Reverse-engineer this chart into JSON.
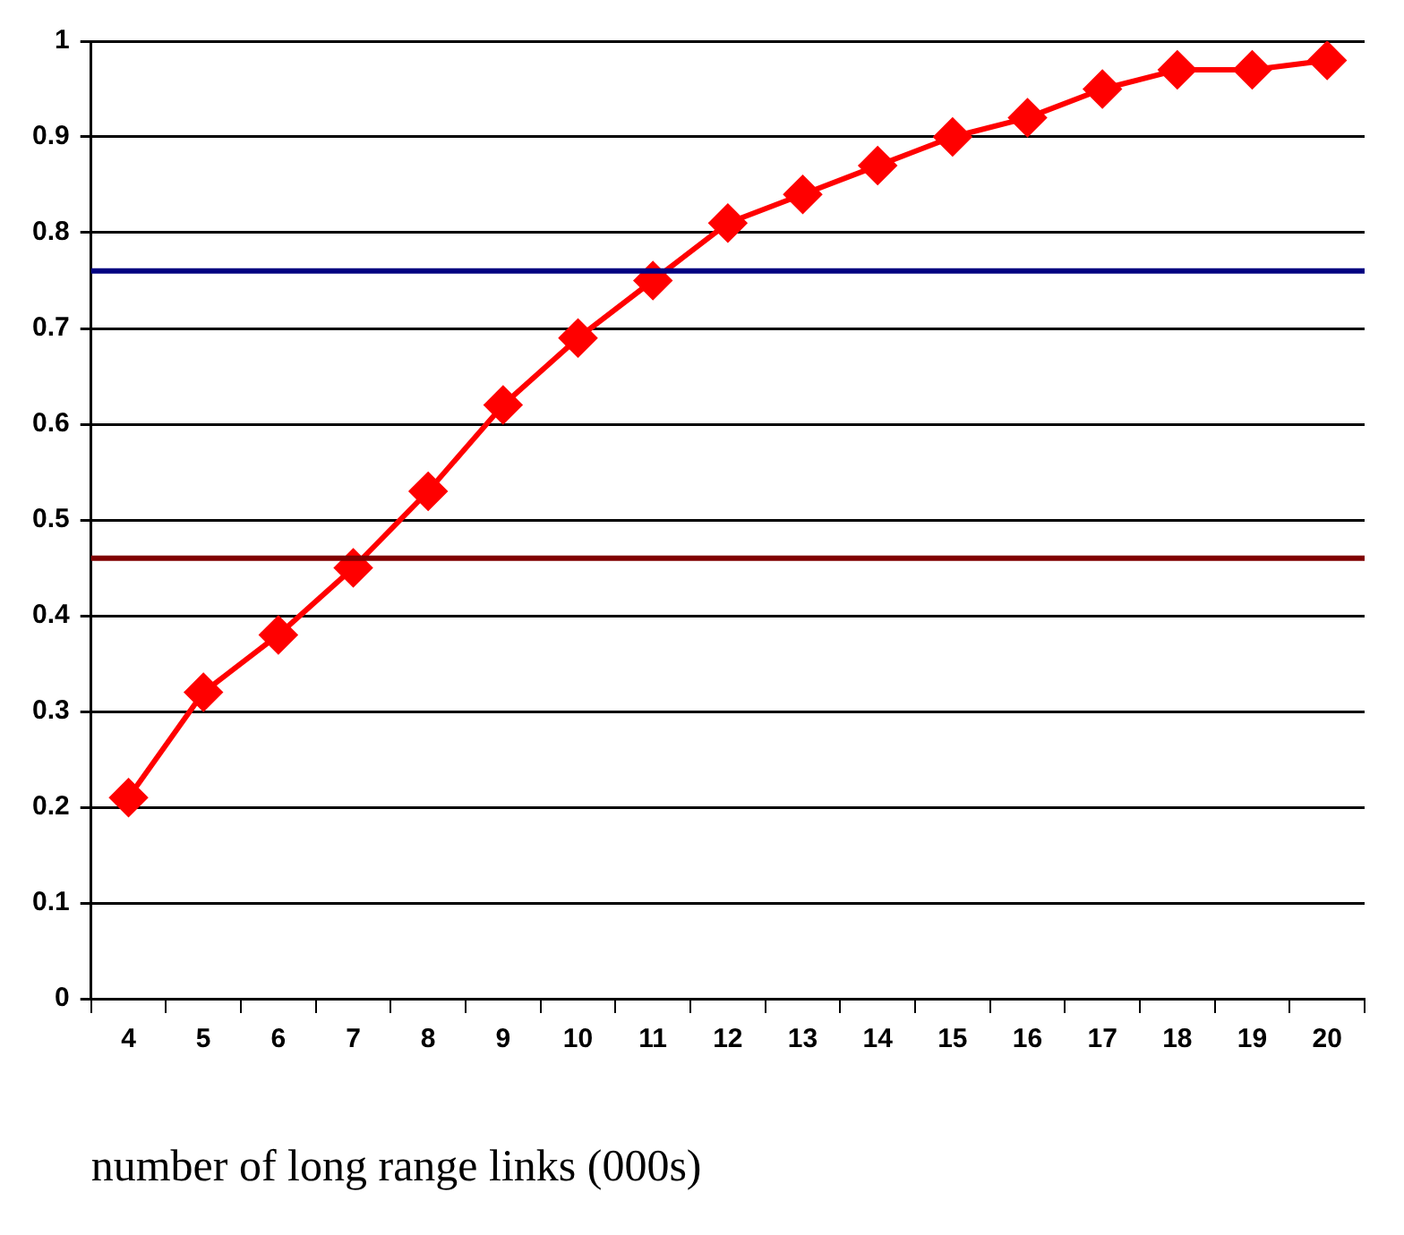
{
  "chart_data": {
    "type": "line",
    "xlabel": "number of long range links (000s)",
    "categories": [
      "4",
      "5",
      "6",
      "7",
      "8",
      "9",
      "10",
      "11",
      "12",
      "13",
      "14",
      "15",
      "16",
      "17",
      "18",
      "19",
      "20"
    ],
    "series": [
      {
        "color": "#ff0000",
        "values": [
          0.21,
          0.32,
          0.38,
          0.45,
          0.53,
          0.62,
          0.69,
          0.75,
          0.81,
          0.84,
          0.87,
          0.9,
          0.92,
          0.95,
          0.97,
          0.97,
          0.98
        ]
      }
    ],
    "ylim": [
      0,
      1
    ],
    "yticks": [
      0,
      0.1,
      0.2,
      0.3,
      0.4,
      0.5,
      0.6,
      0.7,
      0.8,
      0.9,
      1
    ],
    "grid": "y",
    "legend": false,
    "marker": "diamond",
    "line_style": "solid",
    "ref_lines": [
      {
        "axis": "y",
        "value": 0.76,
        "color": "#000080"
      },
      {
        "axis": "y",
        "value": 0.46,
        "color": "#800000"
      }
    ]
  }
}
